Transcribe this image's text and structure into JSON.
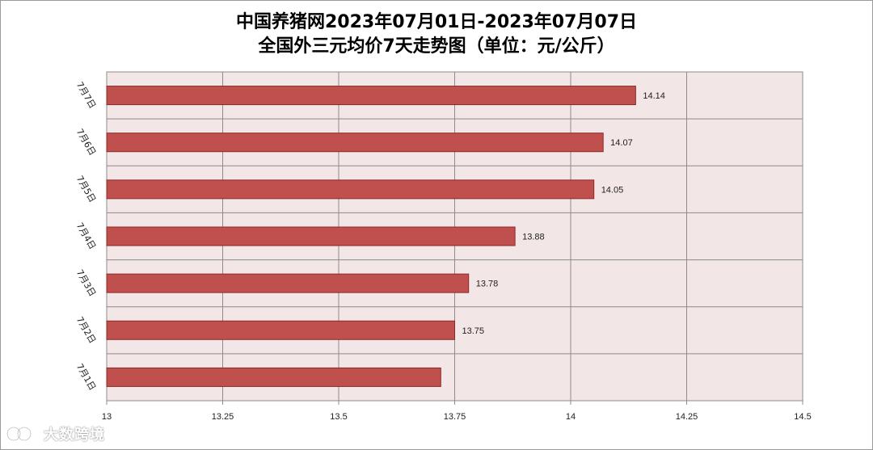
{
  "chart_data": {
    "type": "bar",
    "orientation": "horizontal",
    "title": "中国养猪网2023年07月01日-2023年07月07日",
    "subtitle": "全国外三元均价7天走势图（单位：元/公斤）",
    "categories": [
      "7月7日",
      "7月6日",
      "7月5日",
      "7月4日",
      "7月3日",
      "7月2日",
      "7月1日"
    ],
    "values": [
      14.14,
      14.07,
      14.05,
      13.88,
      13.78,
      13.75,
      13.72
    ],
    "data_labels": [
      "14.14",
      "14.07",
      "14.05",
      "13.88",
      "13.78",
      "13.75",
      ""
    ],
    "xlim": [
      13,
      14.5
    ],
    "x_ticks": [
      13,
      13.25,
      13.5,
      13.75,
      14,
      14.25,
      14.5
    ],
    "x_tick_labels": [
      "13",
      "13.25",
      "13.5",
      "13.75",
      "14",
      "14.25",
      "14.5"
    ],
    "grid": true,
    "legend": "none",
    "colors": {
      "bar": "#c0504d",
      "bar_border": "#8b2a28",
      "plot_background": "#f2e6e6",
      "grid": "#8c8c8c"
    }
  },
  "watermark": {
    "text": "大数跨境",
    "icon": "logo-icon"
  }
}
